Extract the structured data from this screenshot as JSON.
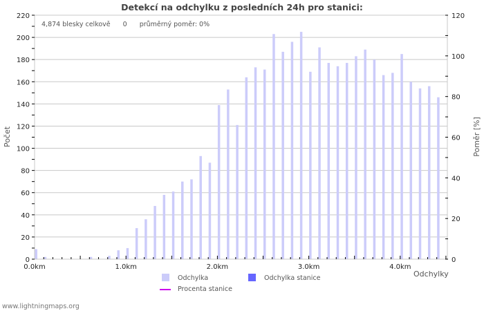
{
  "title": "Detekcí na odchylku z posledních 24h pro stanici:",
  "info": {
    "total": "4,874 blesky celkově",
    "station": "0",
    "ratio": "průměrný poměr: 0%"
  },
  "legend": {
    "odchylka": "Odchylka",
    "odchylka_stanice": "Odchylka stanice",
    "procenta_stanice": "Procenta stanice"
  },
  "colors": {
    "odchylka": "#ccccfa",
    "odchylka_stanice": "#6666ff",
    "procenta_stanice": "#cc00ee",
    "grid": "#c8c8c8"
  },
  "footer": "www.lightningmaps.org",
  "chart_data": {
    "type": "bar",
    "title": "Detekcí na odchylku z posledních 24h pro stanici:",
    "xlabel": "Odchylky",
    "ylabel": "Počet",
    "y2label": "Poměr [%]",
    "ylim": [
      0,
      220
    ],
    "y2lim": [
      0,
      120
    ],
    "yticks": [
      0,
      20,
      40,
      60,
      80,
      100,
      120,
      140,
      160,
      180,
      200,
      220
    ],
    "y2ticks": [
      0,
      20,
      40,
      60,
      80,
      100,
      120
    ],
    "xtick_labels": [
      "0.0km",
      "1.0km",
      "2.0km",
      "3.0km",
      "4.0km"
    ],
    "grid": true,
    "legend_position": "bottom",
    "categories": [
      "0.0",
      "0.1",
      "0.2",
      "0.3",
      "0.4",
      "0.5",
      "0.6",
      "0.7",
      "0.8",
      "0.9",
      "1.0",
      "1.1",
      "1.2",
      "1.3",
      "1.4",
      "1.5",
      "1.6",
      "1.7",
      "1.8",
      "1.9",
      "2.0",
      "2.1",
      "2.2",
      "2.3",
      "2.4",
      "2.5",
      "2.6",
      "2.7",
      "2.8",
      "2.9",
      "3.0",
      "3.1",
      "3.2",
      "3.3",
      "3.4",
      "3.5",
      "3.6",
      "3.7",
      "3.8",
      "3.9",
      "4.0",
      "4.1",
      "4.2",
      "4.3",
      "4.4"
    ],
    "series": [
      {
        "name": "Odchylka",
        "values": [
          9,
          2,
          0,
          0,
          0,
          0,
          2,
          0,
          3,
          8,
          10,
          28,
          36,
          48,
          58,
          61,
          70,
          72,
          93,
          87,
          139,
          153,
          121,
          164,
          173,
          171,
          203,
          187,
          196,
          205,
          169,
          191,
          177,
          174,
          177,
          183,
          189,
          180,
          166,
          168,
          185,
          160,
          154,
          156,
          146
        ]
      },
      {
        "name": "Odchylka stanice",
        "values": [
          0,
          0,
          0,
          0,
          0,
          0,
          0,
          0,
          0,
          0,
          0,
          0,
          0,
          0,
          0,
          0,
          0,
          0,
          0,
          0,
          0,
          0,
          0,
          0,
          0,
          0,
          0,
          0,
          0,
          0,
          0,
          0,
          0,
          0,
          0,
          0,
          0,
          0,
          0,
          0,
          0,
          0,
          0,
          0,
          0
        ]
      },
      {
        "name": "Procenta stanice",
        "values": [
          0,
          0,
          0,
          0,
          0,
          0,
          0,
          0,
          0,
          0,
          0,
          0,
          0,
          0,
          0,
          0,
          0,
          0,
          0,
          0,
          0,
          0,
          0,
          0,
          0,
          0,
          0,
          0,
          0,
          0,
          0,
          0,
          0,
          0,
          0,
          0,
          0,
          0,
          0,
          0,
          0,
          0,
          0,
          0,
          0
        ]
      }
    ]
  }
}
